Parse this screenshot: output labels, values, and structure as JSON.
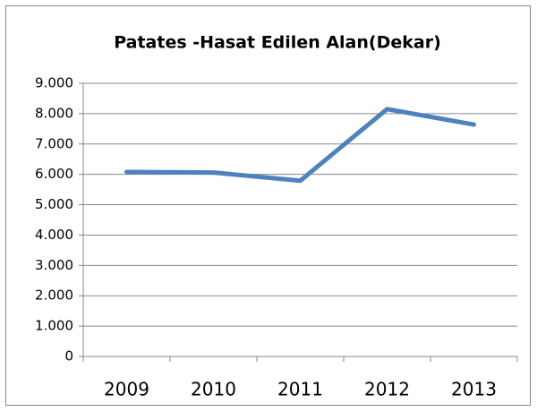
{
  "chart_data": {
    "type": "line",
    "title": "Patates -Hasat Edilen Alan(Dekar)",
    "categories": [
      "2009",
      "2010",
      "2011",
      "2012",
      "2013"
    ],
    "series": [
      {
        "color": "#4f81bd",
        "values": [
          6080,
          6060,
          5790,
          8150,
          7640
        ]
      }
    ],
    "ylim": [
      0,
      9000
    ],
    "yticks": [
      0,
      {
        "value": 1000,
        "label": "1.000"
      },
      {
        "value": 2000,
        "label": "2.000"
      },
      {
        "value": 3000,
        "label": "3.000"
      },
      {
        "value": 4000,
        "label": "4.000"
      },
      {
        "value": 5000,
        "label": "5.000"
      },
      {
        "value": 6000,
        "label": "6.000"
      },
      {
        "value": 7000,
        "label": "7.000"
      },
      {
        "value": 8000,
        "label": "8.000"
      },
      {
        "value": 9000,
        "label": "9.000"
      }
    ],
    "grid": true
  }
}
